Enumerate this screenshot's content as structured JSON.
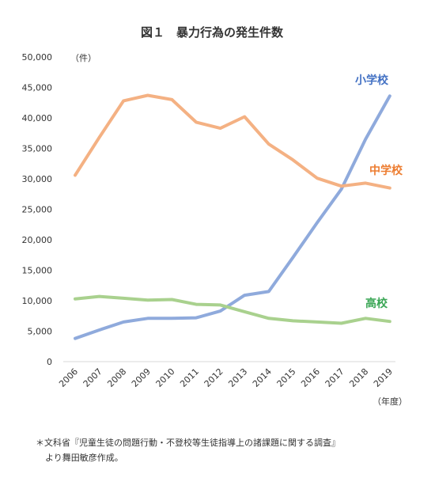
{
  "chart_data": {
    "type": "line",
    "title": "図１　暴力行為の発生件数",
    "y_unit_label": "（件）",
    "x_unit_label": "（年度）",
    "x": [
      "2006",
      "2007",
      "2008",
      "2009",
      "2010",
      "2011",
      "2012",
      "2013",
      "2014",
      "2015",
      "2016",
      "2017",
      "2018",
      "2019"
    ],
    "ylim": [
      0,
      50000
    ],
    "yticks": [
      "0",
      "5,000",
      "10,000",
      "15,000",
      "20,000",
      "25,000",
      "30,000",
      "35,000",
      "40,000",
      "45,000",
      "50,000"
    ],
    "grid": false,
    "series": [
      {
        "name": "小学校",
        "color": "#8faadc",
        "label_color": "#4472c4",
        "values": [
          3800,
          5200,
          6500,
          7100,
          7100,
          7200,
          8300,
          10900,
          11500,
          17100,
          22800,
          28300,
          36500,
          43600
        ]
      },
      {
        "name": "中学校",
        "color": "#f4b183",
        "label_color": "#ed7d31",
        "values": [
          30600,
          36800,
          42800,
          43700,
          43000,
          39300,
          38300,
          40200,
          35700,
          33100,
          30100,
          28800,
          29300,
          28500
        ]
      },
      {
        "name": "高校",
        "color": "#a9d18e",
        "label_color": "#3aa655",
        "values": [
          10300,
          10700,
          10400,
          10100,
          10200,
          9400,
          9300,
          8200,
          7100,
          6700,
          6500,
          6300,
          7100,
          6600
        ]
      }
    ]
  },
  "notes": {
    "line1": "＊文科省『児童生徒の問題行動・不登校等生徒指導上の諸課題に関する調査』",
    "line2": "より舞田敏彦作成。"
  }
}
